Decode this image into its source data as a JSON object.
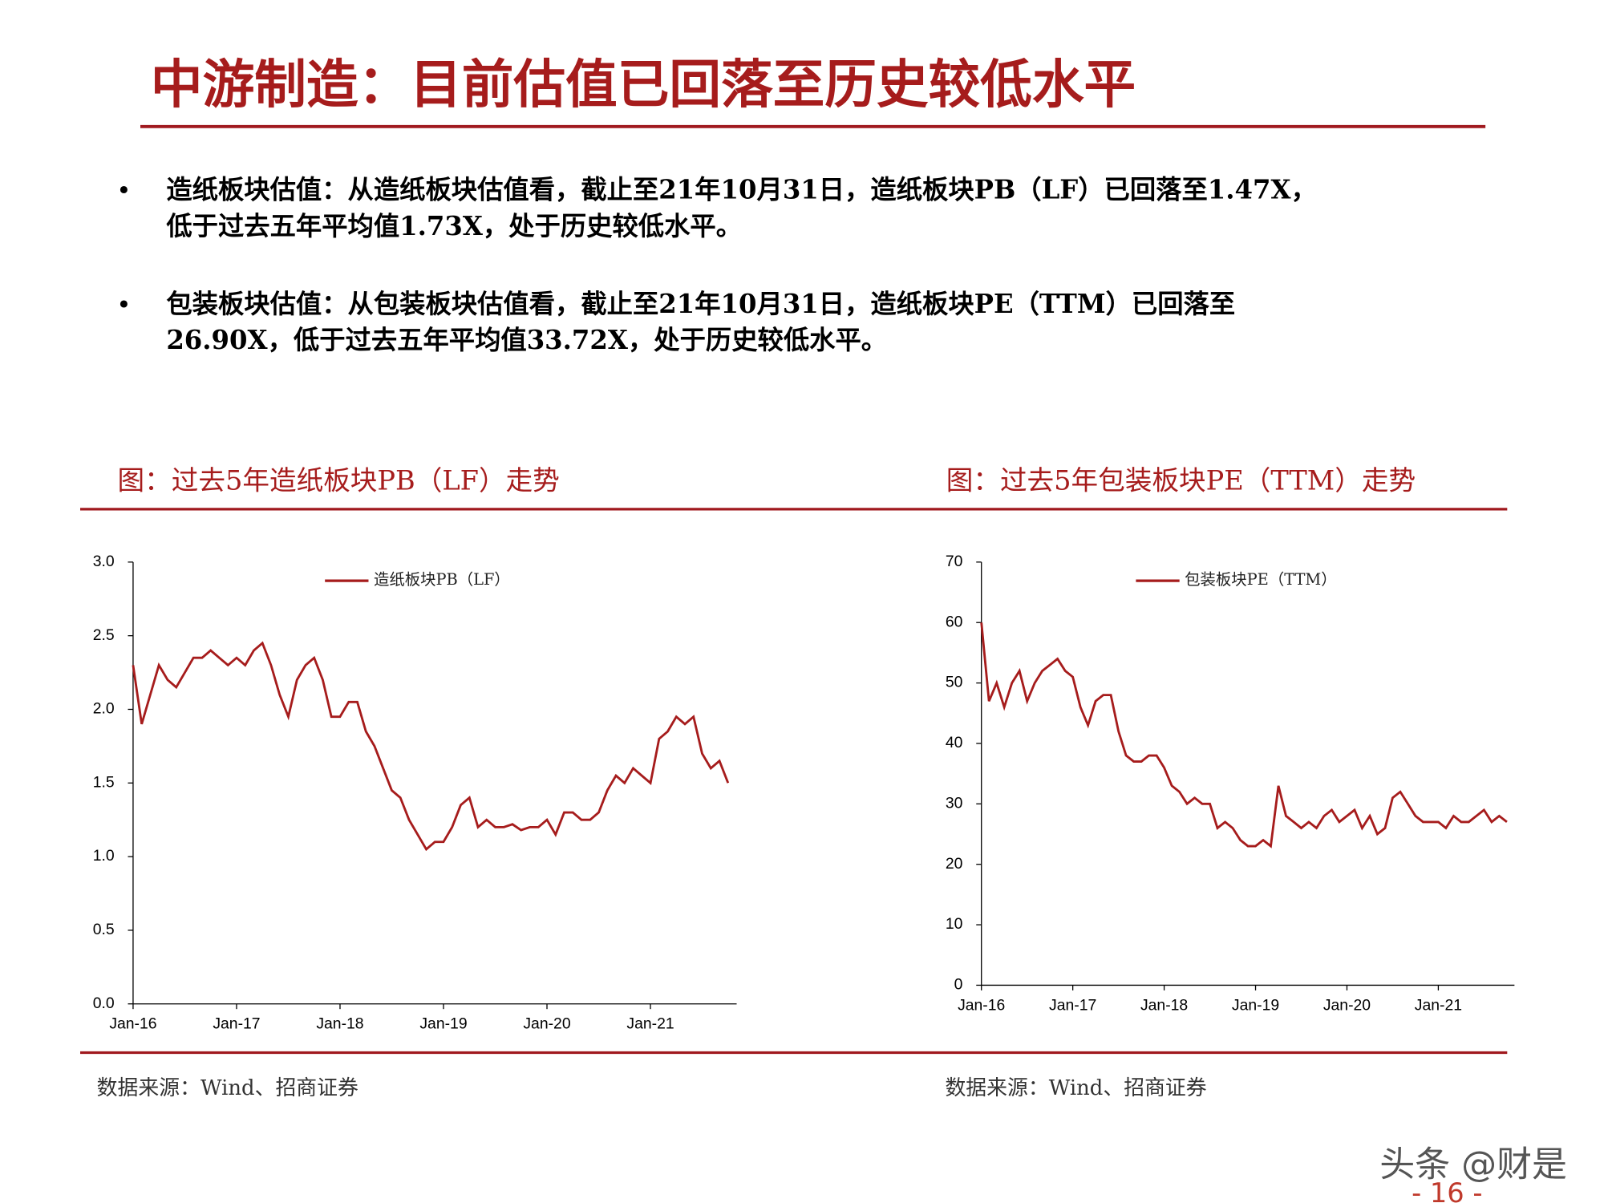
{
  "title": "中游制造：目前估值已回落至历史较低水平",
  "bullets": [
    [
      "造纸板块估值：从造纸板块估值看，截止至21年10月31日，造纸板块PB（LF）已回落至1.47X，",
      "低于过去五年平均值1.73X，处于历史较低水平。"
    ],
    [
      "包装板块估值：从包装板块估值看，截止至21年10月31日，造纸板块PE（TTM）已回落至",
      "26.90X，低于过去五年平均值33.72X，处于历史较低水平。"
    ]
  ],
  "watermark": "头条 @财是",
  "page_number": "- 16 -",
  "chart_data": [
    {
      "type": "line",
      "title": "图：过去5年造纸板块PB（LF）走势",
      "source": "数据来源：Wind、招商证券",
      "categories": [
        "Jan-16",
        null,
        null,
        null,
        null,
        null,
        null,
        null,
        null,
        null,
        null,
        null,
        "Jan-17",
        null,
        null,
        null,
        null,
        null,
        null,
        null,
        null,
        null,
        null,
        null,
        "Jan-18",
        null,
        null,
        null,
        null,
        null,
        null,
        null,
        null,
        null,
        null,
        null,
        "Jan-19",
        null,
        null,
        null,
        null,
        null,
        null,
        null,
        null,
        null,
        null,
        null,
        "Jan-20",
        null,
        null,
        null,
        null,
        null,
        null,
        null,
        null,
        null,
        null,
        null,
        "Jan-21",
        null,
        null,
        null,
        null,
        null,
        null,
        null,
        null,
        null
      ],
      "series": [
        {
          "name": "造纸板块PB（LF）",
          "color": "#a61c1c",
          "values": [
            2.3,
            1.9,
            2.1,
            2.3,
            2.2,
            2.15,
            2.25,
            2.35,
            2.35,
            2.4,
            2.35,
            2.3,
            2.35,
            2.3,
            2.4,
            2.45,
            2.3,
            2.1,
            1.95,
            2.2,
            2.3,
            2.35,
            2.2,
            1.95,
            1.95,
            2.05,
            2.05,
            1.85,
            1.75,
            1.6,
            1.45,
            1.4,
            1.25,
            1.15,
            1.05,
            1.1,
            1.1,
            1.2,
            1.35,
            1.4,
            1.2,
            1.25,
            1.2,
            1.2,
            1.22,
            1.18,
            1.2,
            1.2,
            1.25,
            1.15,
            1.3,
            1.3,
            1.25,
            1.25,
            1.3,
            1.45,
            1.55,
            1.5,
            1.6,
            1.55,
            1.5,
            1.8,
            1.85,
            1.95,
            1.9,
            1.95,
            1.7,
            1.6,
            1.65,
            1.5
          ]
        }
      ],
      "ylim": [
        0,
        3
      ],
      "yticks": [
        {
          "value": 0,
          "label": "0.0"
        },
        0.5,
        {
          "value": 1,
          "label": "1.0"
        },
        1.5,
        {
          "value": 2,
          "label": "2.0"
        },
        2.5,
        {
          "value": 3,
          "label": "3.0"
        }
      ],
      "legend": "top"
    },
    {
      "type": "line",
      "title": "图：过去5年包装板块PE（TTM）走势",
      "source": "数据来源：Wind、招商证券",
      "categories": [
        "Jan-16",
        null,
        null,
        null,
        null,
        null,
        null,
        null,
        null,
        null,
        null,
        null,
        "Jan-17",
        null,
        null,
        null,
        null,
        null,
        null,
        null,
        null,
        null,
        null,
        null,
        "Jan-18",
        null,
        null,
        null,
        null,
        null,
        null,
        null,
        null,
        null,
        null,
        null,
        "Jan-19",
        null,
        null,
        null,
        null,
        null,
        null,
        null,
        null,
        null,
        null,
        null,
        "Jan-20",
        null,
        null,
        null,
        null,
        null,
        null,
        null,
        null,
        null,
        null,
        null,
        "Jan-21",
        null,
        null,
        null,
        null,
        null,
        null,
        null,
        null,
        null
      ],
      "series": [
        {
          "name": "包装板块PE（TTM）",
          "color": "#a61c1c",
          "values": [
            60,
            47,
            50,
            46,
            50,
            52,
            47,
            50,
            52,
            53,
            54,
            52,
            51,
            46,
            43,
            47,
            48,
            48,
            42,
            38,
            37,
            37,
            38,
            38,
            36,
            33,
            32,
            30,
            31,
            30,
            30,
            26,
            27,
            26,
            24,
            23,
            23,
            24,
            23,
            33,
            28,
            27,
            26,
            27,
            26,
            28,
            29,
            27,
            28,
            29,
            26,
            28,
            25,
            26,
            31,
            32,
            30,
            28,
            27,
            27,
            27,
            26,
            28,
            27,
            27,
            28,
            29,
            27,
            28,
            27
          ]
        }
      ],
      "ylim": [
        0,
        70
      ],
      "yticks": [
        0,
        10,
        20,
        30,
        40,
        50,
        60,
        70
      ],
      "legend": "top"
    }
  ]
}
